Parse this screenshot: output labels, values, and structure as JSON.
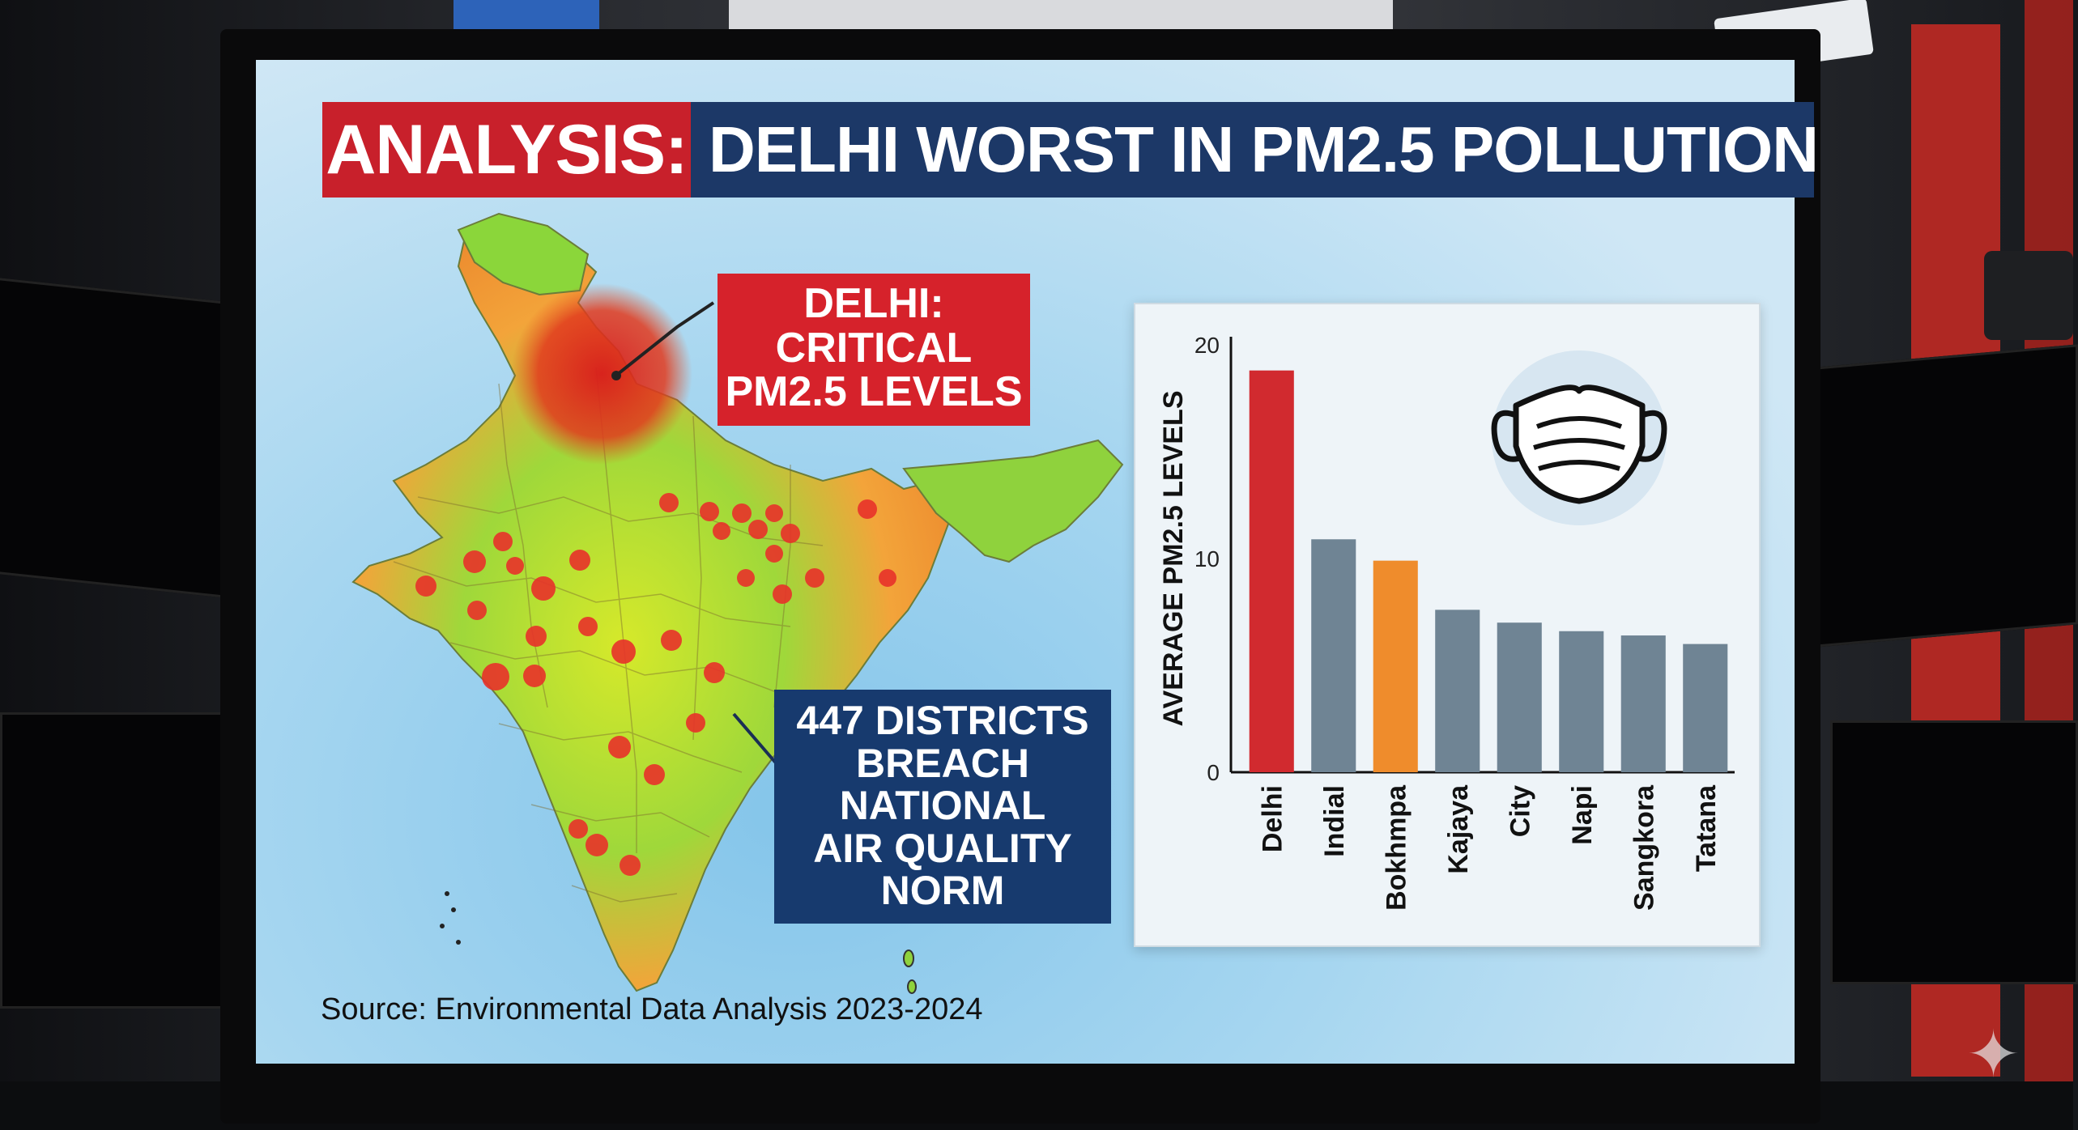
{
  "header": {
    "tag": "ANALYSIS:",
    "title": "DELHI WORST IN PM2.5 POLLUTION"
  },
  "callouts": {
    "delhi_line1": "DELHI: CRITICAL",
    "delhi_line2": "PM2.5 LEVELS",
    "districts_line1": "447 DISTRICTS",
    "districts_line2": "BREACH NATIONAL",
    "districts_line3": "AIR QUALITY NORM"
  },
  "source": "Source: Environmental Data Analysis 2023-2024",
  "icons": {
    "mask": "face-mask-icon"
  },
  "colors": {
    "highlight_red": "#d12a2f",
    "highlight_orange": "#ef8c2c",
    "bar_gray": "#6f8494",
    "header_red": "#c8202b",
    "header_navy": "#1c3867"
  },
  "chart_data": {
    "type": "bar",
    "title": "",
    "xlabel": "",
    "ylabel": "AVERAGE PM2.5 LEVELS",
    "ylim": [
      0,
      20
    ],
    "yticks": [
      0,
      10,
      20
    ],
    "categories": [
      "Delhi",
      "Indial",
      "Bokhmpa",
      "Kajaya",
      "City",
      "Napi",
      "Sangkora",
      "Tatana"
    ],
    "values": [
      18.8,
      10.9,
      9.9,
      7.6,
      7.0,
      6.6,
      6.4,
      6.0
    ],
    "bar_colors": [
      "#d12a2f",
      "#6f8494",
      "#ef8c2c",
      "#6f8494",
      "#6f8494",
      "#6f8494",
      "#6f8494",
      "#6f8494"
    ],
    "grid": false,
    "legend": "none"
  }
}
